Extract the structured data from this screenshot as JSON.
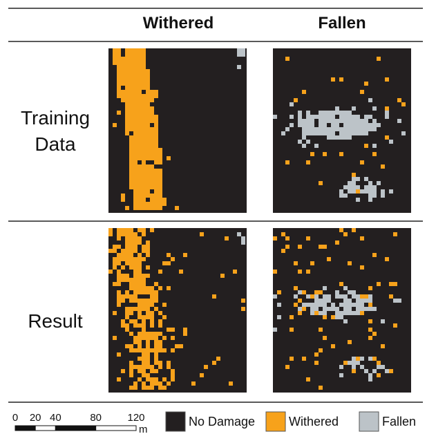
{
  "header": {
    "columns": [
      "Withered",
      "Fallen"
    ]
  },
  "rows": [
    "Training Data",
    "Result"
  ],
  "scale": {
    "ticks": [
      0,
      20,
      40,
      80,
      120
    ],
    "unit": "m"
  },
  "legend": [
    {
      "label": "No Damage",
      "color": "#231f20"
    },
    {
      "label": "Withered",
      "color": "#f7a21b"
    },
    {
      "label": "Fallen",
      "color": "#bcc3c8"
    }
  ]
}
